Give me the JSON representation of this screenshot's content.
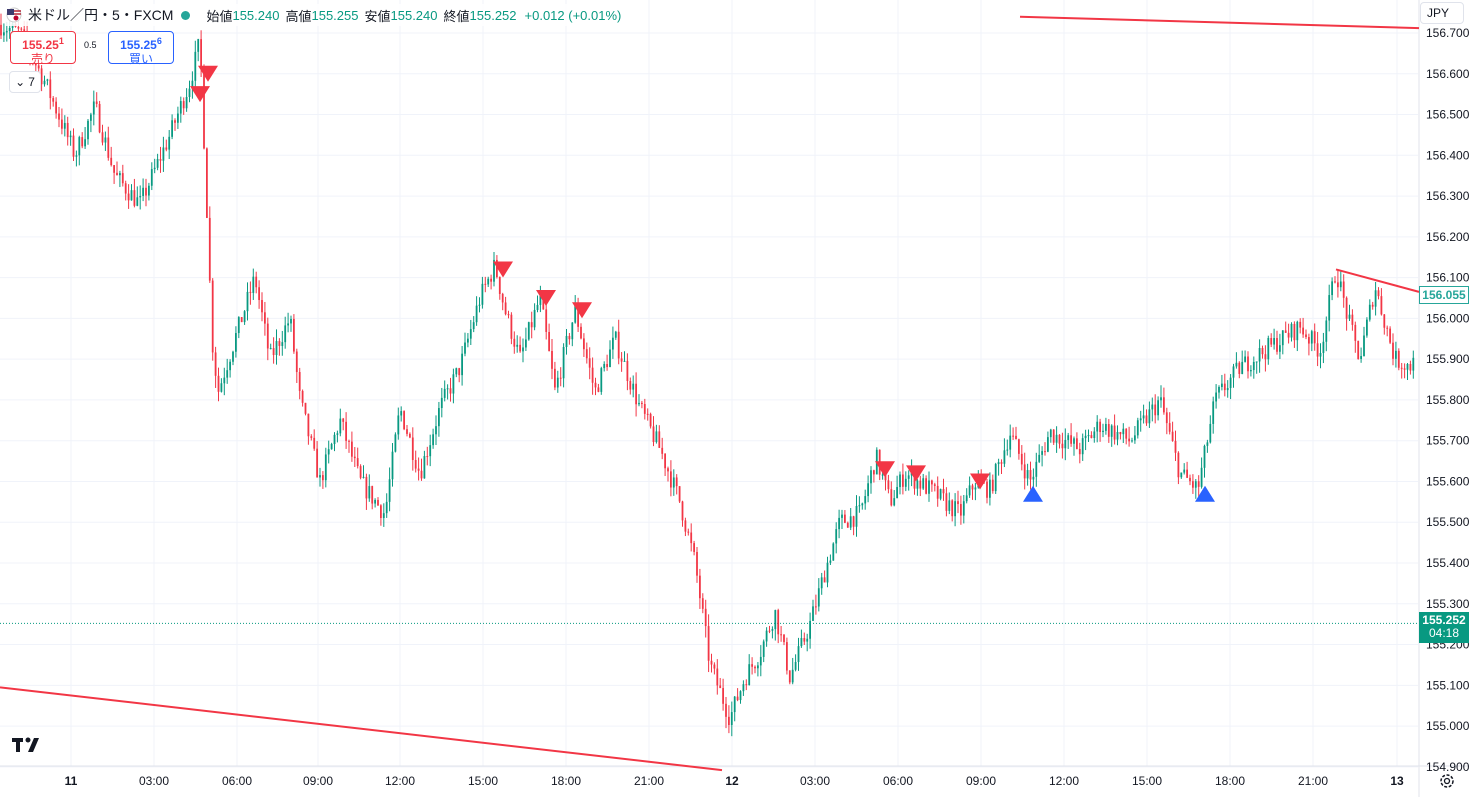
{
  "legend": {
    "symbol_title": "米ドル／円・5・FXCM",
    "open_label": "始値",
    "open": "155.240",
    "high_label": "高値",
    "high": "155.255",
    "low_label": "安値",
    "low": "155.240",
    "close_label": "終値",
    "close": "155.252",
    "change": "+0.012 (+0.01%)"
  },
  "trade": {
    "sell_price_main": "155.25",
    "sell_price_sup": "1",
    "sell_label": "売り",
    "spread": "0.5",
    "buy_price_main": "155.25",
    "buy_price_sup": "6",
    "buy_label": "買い"
  },
  "indicator_toggle": {
    "count": "7",
    "icon": "chevron-down-icon"
  },
  "currency": "JPY",
  "price_axis_labels": [
    "156.700",
    "156.600",
    "156.500",
    "156.400",
    "156.300",
    "156.200",
    "156.100",
    "156.000",
    "155.900",
    "155.800",
    "155.700",
    "155.600",
    "155.500",
    "155.400",
    "155.300",
    "155.200",
    "155.100",
    "155.000",
    "154.900"
  ],
  "last_price_tag": "156.055",
  "current_price_tag": {
    "price": "155.252",
    "countdown": "04:18"
  },
  "time_axis_labels": [
    "11",
    "03:00",
    "06:00",
    "09:00",
    "12:00",
    "15:00",
    "18:00",
    "21:00",
    "12",
    "03:00",
    "06:00",
    "09:00",
    "12:00",
    "15:00",
    "18:00",
    "21:00",
    "13"
  ],
  "colors": {
    "up": "#089981",
    "down": "#f23645",
    "buy_marker": "#2962ff",
    "sell_marker": "#f23645",
    "trendline": "#f23645"
  },
  "chart_data": {
    "type": "candlestick",
    "series_path": [
      [
        0,
        156.72
      ],
      [
        20,
        156.7
      ],
      [
        45,
        156.58
      ],
      [
        75,
        156.4
      ],
      [
        95,
        156.52
      ],
      [
        115,
        156.35
      ],
      [
        140,
        156.28
      ],
      [
        170,
        156.45
      ],
      [
        190,
        156.58
      ],
      [
        200,
        156.68
      ],
      [
        208,
        156.2
      ],
      [
        212,
        155.95
      ],
      [
        218,
        155.82
      ],
      [
        235,
        155.95
      ],
      [
        255,
        156.1
      ],
      [
        270,
        155.9
      ],
      [
        290,
        156.0
      ],
      [
        300,
        155.8
      ],
      [
        320,
        155.6
      ],
      [
        340,
        155.75
      ],
      [
        360,
        155.6
      ],
      [
        385,
        155.52
      ],
      [
        400,
        155.78
      ],
      [
        420,
        155.62
      ],
      [
        440,
        155.78
      ],
      [
        460,
        155.88
      ],
      [
        480,
        156.05
      ],
      [
        495,
        156.13
      ],
      [
        505,
        156.02
      ],
      [
        520,
        155.9
      ],
      [
        540,
        156.05
      ],
      [
        555,
        155.82
      ],
      [
        575,
        156.02
      ],
      [
        595,
        155.82
      ],
      [
        615,
        155.95
      ],
      [
        640,
        155.78
      ],
      [
        660,
        155.68
      ],
      [
        680,
        155.55
      ],
      [
        695,
        155.4
      ],
      [
        710,
        155.15
      ],
      [
        730,
        155.02
      ],
      [
        745,
        155.12
      ],
      [
        760,
        155.18
      ],
      [
        775,
        155.28
      ],
      [
        790,
        155.12
      ],
      [
        810,
        155.25
      ],
      [
        825,
        155.38
      ],
      [
        840,
        155.5
      ],
      [
        860,
        155.52
      ],
      [
        876,
        155.66
      ],
      [
        890,
        155.55
      ],
      [
        905,
        155.62
      ],
      [
        930,
        155.58
      ],
      [
        960,
        155.52
      ],
      [
        975,
        155.6
      ],
      [
        990,
        155.58
      ],
      [
        1010,
        155.72
      ],
      [
        1030,
        155.6
      ],
      [
        1050,
        155.72
      ],
      [
        1080,
        155.68
      ],
      [
        1100,
        155.74
      ],
      [
        1130,
        155.7
      ],
      [
        1160,
        155.8
      ],
      [
        1180,
        155.62
      ],
      [
        1198,
        155.58
      ],
      [
        1215,
        155.8
      ],
      [
        1240,
        155.88
      ],
      [
        1270,
        155.93
      ],
      [
        1300,
        155.98
      ],
      [
        1320,
        155.92
      ],
      [
        1336,
        156.12
      ],
      [
        1350,
        155.98
      ],
      [
        1360,
        155.9
      ],
      [
        1375,
        156.08
      ],
      [
        1395,
        155.9
      ],
      [
        1412,
        155.88
      ],
      [
        1418,
        156.055
      ]
    ],
    "sell_signals": [
      [
        200,
        156.55
      ],
      [
        208,
        156.6
      ],
      [
        503,
        156.12
      ],
      [
        546,
        156.05
      ],
      [
        582,
        156.02
      ],
      [
        885,
        155.63
      ],
      [
        916,
        155.62
      ],
      [
        980,
        155.6
      ]
    ],
    "buy_signals": [
      [
        1033,
        155.57
      ],
      [
        1205,
        155.57
      ]
    ],
    "trendlines": [
      [
        [
          1020,
          156.74
        ],
        [
          1419,
          156.712
        ]
      ],
      [
        [
          0,
          155.095
        ],
        [
          722,
          154.892
        ]
      ],
      [
        [
          1336,
          156.12
        ],
        [
          1419,
          156.065
        ]
      ]
    ],
    "y_range": [
      154.892,
      156.74
    ],
    "current_price": 155.252
  }
}
